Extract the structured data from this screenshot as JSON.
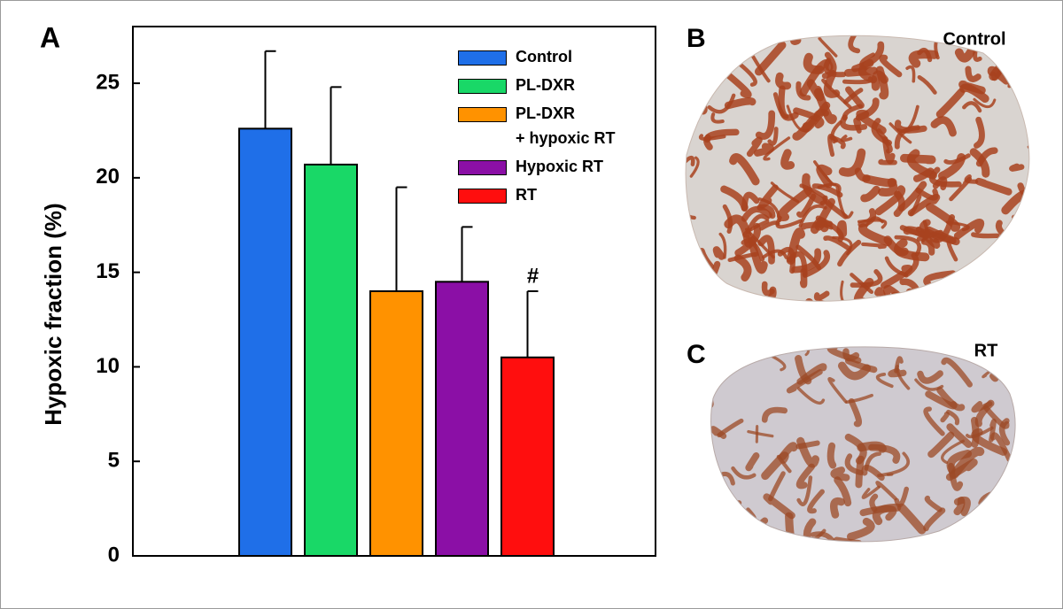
{
  "chart_data": {
    "type": "bar",
    "ylabel": "Hypoxic fraction (%)",
    "ylim": [
      0,
      28
    ],
    "yticks": [
      0,
      5,
      10,
      15,
      20,
      25
    ],
    "series": [
      {
        "name": "Control",
        "color": "#1f6fe8",
        "values": [
          22.6
        ],
        "errors": [
          4.1
        ]
      },
      {
        "name": "PL-DXR",
        "color": "#19d867",
        "values": [
          20.7
        ],
        "errors": [
          4.1
        ]
      },
      {
        "name": "PL-DXR\n+ hypoxic RT",
        "color": "#ff9200",
        "values": [
          14.0
        ],
        "errors": [
          5.5
        ]
      },
      {
        "name": "Hypoxic RT",
        "color": "#8b0fa6",
        "values": [
          14.5
        ],
        "errors": [
          2.9
        ]
      },
      {
        "name": "RT",
        "color": "#ff0e0e",
        "values": [
          10.5
        ],
        "errors": [
          3.5
        ]
      }
    ],
    "annotation": "#",
    "legend": "upper right"
  },
  "panels": {
    "a": "A",
    "b": "B",
    "c": "C"
  },
  "images": {
    "b_label": "Control",
    "c_label": "RT"
  }
}
